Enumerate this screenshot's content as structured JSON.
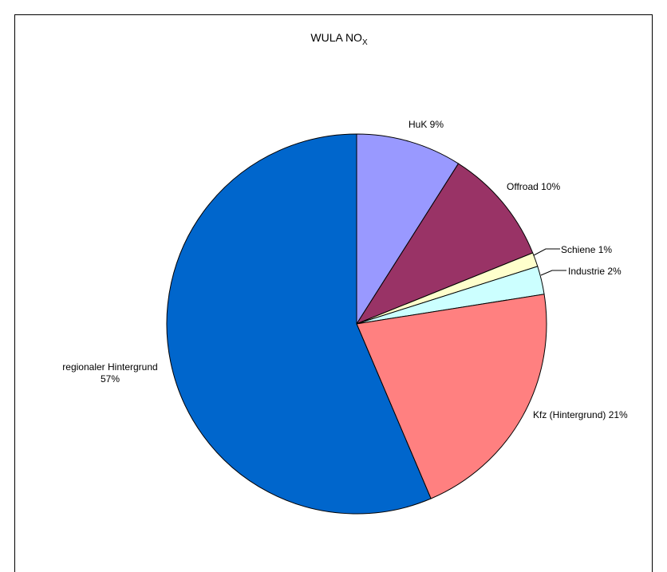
{
  "chart_data": {
    "type": "pie",
    "title": "WULA NO",
    "title_subscript": "X",
    "slices": [
      {
        "label": "HuK",
        "pct_label": "9%",
        "value": 9.0,
        "color": "#9999FF"
      },
      {
        "label": "Offroad",
        "pct_label": "10%",
        "value": 9.9,
        "color": "#993366"
      },
      {
        "label": "Schiene",
        "pct_label": "1%",
        "value": 1.2,
        "color": "#FFFFCC"
      },
      {
        "label": "Industrie",
        "pct_label": "2%",
        "value": 2.4,
        "color": "#CCFFFF"
      },
      {
        "label": "Kfz (Hintergrund)",
        "pct_label": "21%",
        "value": 21.1,
        "color": "#FF8080"
      },
      {
        "label": "regionaler Hintergrund",
        "pct_label": "57%",
        "value": 56.4,
        "color": "#0066CC"
      }
    ],
    "start_angle": "12 o'clock",
    "direction": "clockwise",
    "legend": "none"
  }
}
